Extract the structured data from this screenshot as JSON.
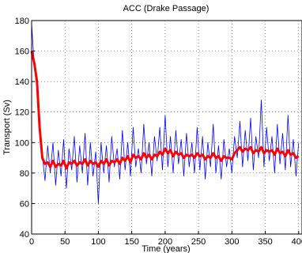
{
  "chart_data": {
    "type": "line",
    "title": "ACC (Drake Passage)",
    "xlabel": "Time (years)",
    "ylabel": "Transport (Sv)",
    "x": [
      0,
      4,
      8,
      12,
      16,
      20,
      24,
      28,
      32,
      36,
      40,
      44,
      48,
      52,
      56,
      60,
      64,
      68,
      72,
      76,
      80,
      84,
      88,
      92,
      96,
      100,
      104,
      108,
      112,
      116,
      120,
      124,
      128,
      132,
      136,
      140,
      144,
      148,
      152,
      156,
      160,
      164,
      168,
      172,
      176,
      180,
      184,
      188,
      192,
      196,
      200,
      204,
      208,
      212,
      216,
      220,
      224,
      228,
      232,
      236,
      240,
      244,
      248,
      252,
      256,
      260,
      264,
      268,
      272,
      276,
      280,
      284,
      288,
      292,
      296,
      300,
      304,
      308,
      312,
      316,
      320,
      324,
      328,
      332,
      336,
      340,
      344,
      348,
      352,
      356,
      360,
      364,
      368,
      372,
      376,
      380,
      384,
      388,
      392,
      396,
      400
    ],
    "series": [
      {
        "color": "#0000ff",
        "values": [
          178,
          150,
          140,
          110,
          92,
          75,
          98,
          80,
          100,
          72,
          95,
          78,
          102,
          70,
          96,
          82,
          104,
          74,
          98,
          80,
          106,
          72,
          100,
          78,
          94,
          60,
          100,
          80,
          98,
          74,
          104,
          84,
          96,
          76,
          108,
          82,
          100,
          78,
          110,
          84,
          96,
          80,
          112,
          86,
          100,
          78,
          104,
          88,
          110,
          82,
          118,
          84,
          104,
          80,
          108,
          86,
          102,
          78,
          106,
          84,
          100,
          80,
          110,
          82,
          104,
          76,
          100,
          84,
          112,
          80,
          98,
          76,
          102,
          84,
          96,
          80,
          104,
          90,
          114,
          84,
          108,
          88,
          116,
          82,
          104,
          90,
          128,
          84,
          110,
          88,
          104,
          80,
          112,
          86,
          106,
          82,
          118,
          84,
          102,
          78,
          100
        ]
      },
      {
        "color": "#ff0000",
        "values": [
          160,
          152,
          140,
          110,
          90,
          86,
          87,
          84,
          88,
          84,
          86,
          85,
          88,
          83,
          87,
          86,
          88,
          85,
          87,
          86,
          89,
          85,
          88,
          86,
          87,
          84,
          88,
          86,
          89,
          85,
          88,
          87,
          89,
          86,
          90,
          88,
          91,
          87,
          92,
          90,
          91,
          89,
          93,
          90,
          92,
          89,
          92,
          91,
          94,
          92,
          96,
          93,
          95,
          91,
          94,
          92,
          93,
          90,
          92,
          91,
          92,
          90,
          93,
          91,
          92,
          89,
          91,
          90,
          93,
          90,
          91,
          88,
          91,
          90,
          90,
          89,
          93,
          95,
          97,
          94,
          96,
          95,
          97,
          93,
          95,
          94,
          97,
          93,
          95,
          94,
          95,
          92,
          96,
          93,
          94,
          91,
          95,
          92,
          93,
          90,
          91
        ]
      }
    ],
    "xlim": [
      0,
      405
    ],
    "ylim": [
      40,
      180
    ],
    "xticks": [
      0,
      50,
      100,
      150,
      200,
      250,
      300,
      350,
      400
    ],
    "yticks": [
      40,
      60,
      80,
      100,
      120,
      140,
      160,
      180
    ],
    "grid": true
  }
}
